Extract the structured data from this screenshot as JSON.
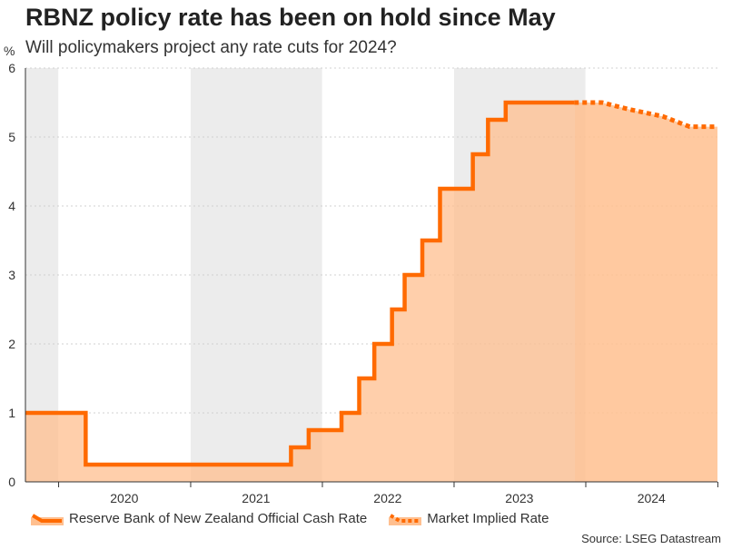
{
  "title": "RBNZ policy rate has been on hold since May",
  "subtitle": "Will policymakers project any rate cuts for 2024?",
  "unit": "%",
  "source": "Source: LSEG Datastream",
  "colors": {
    "line": "#ff6a00",
    "area": "#ffbf8f",
    "area_shaded": "#f2b78c",
    "shade": "#ececec",
    "grid": "#d0d0d0",
    "axis": "#333333"
  },
  "chart_data": {
    "type": "line",
    "x_tick_labels": [
      "2020",
      "2021",
      "2022",
      "2023",
      "2024"
    ],
    "y_ticks": [
      0,
      1,
      2,
      3,
      4,
      5,
      6
    ],
    "ylim": [
      0,
      6
    ],
    "xlim": [
      "2019-10-01",
      "2024-12-31"
    ],
    "shaded_periods": [
      [
        "2019-10-01",
        "2019-12-31"
      ],
      [
        "2021-01-01",
        "2021-12-31"
      ],
      [
        "2023-01-01",
        "2023-12-31"
      ]
    ],
    "series": [
      {
        "name": "Reserve Bank of New Zealand Official Cash Rate",
        "style": "solid step area",
        "points": [
          [
            "2019-10-01",
            1.0
          ],
          [
            "2020-03-16",
            0.25
          ],
          [
            "2021-10-06",
            0.5
          ],
          [
            "2021-11-24",
            0.75
          ],
          [
            "2022-02-23",
            1.0
          ],
          [
            "2022-04-13",
            1.5
          ],
          [
            "2022-05-25",
            2.0
          ],
          [
            "2022-07-13",
            2.5
          ],
          [
            "2022-08-17",
            3.0
          ],
          [
            "2022-10-05",
            3.5
          ],
          [
            "2022-11-23",
            4.25
          ],
          [
            "2023-02-22",
            4.75
          ],
          [
            "2023-04-05",
            5.25
          ],
          [
            "2023-05-24",
            5.5
          ],
          [
            "2023-11-30",
            5.5
          ]
        ]
      },
      {
        "name": "Market Implied Rate",
        "style": "dotted line area",
        "points": [
          [
            "2023-11-30",
            5.5
          ],
          [
            "2024-02-15",
            5.5
          ],
          [
            "2024-05-01",
            5.4
          ],
          [
            "2024-08-01",
            5.3
          ],
          [
            "2024-10-15",
            5.15
          ],
          [
            "2024-12-31",
            5.15
          ]
        ]
      }
    ]
  }
}
